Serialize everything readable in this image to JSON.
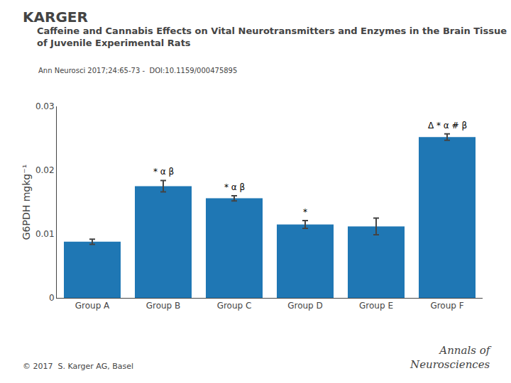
{
  "chart_data": {
    "type": "bar",
    "logo": "KARGER",
    "title": [
      "Caffeine and Cannabis Effects on Vital Neurotransmitters and Enzymes in the Brain Tissue",
      "of Juvenile Experimental Rats"
    ],
    "subtitle": "Ann Neurosci 2017;24:65-73 -  DOI:10.1159/000475895",
    "credit": "© 2017  S. Karger AG, Basel",
    "journal": [
      "Annals of",
      "Neurosciences"
    ],
    "ylabel": "G6PDH mgkg⁻¹",
    "categories": [
      "Group A",
      "Group B",
      "Group C",
      "Group D",
      "Group E",
      "Group F"
    ],
    "values": [
      0.0088,
      0.0175,
      0.0156,
      0.0115,
      0.0112,
      0.0252
    ],
    "errors": [
      0.0004,
      0.0009,
      0.0004,
      0.0006,
      0.0013,
      0.0005
    ],
    "annotations": [
      null,
      "* α β",
      "* α β",
      "*",
      null,
      "Δ * α # β"
    ],
    "ylim": [
      0,
      0.03
    ],
    "yticks": [
      0,
      0.01,
      0.02,
      0.03
    ],
    "grid": false
  }
}
